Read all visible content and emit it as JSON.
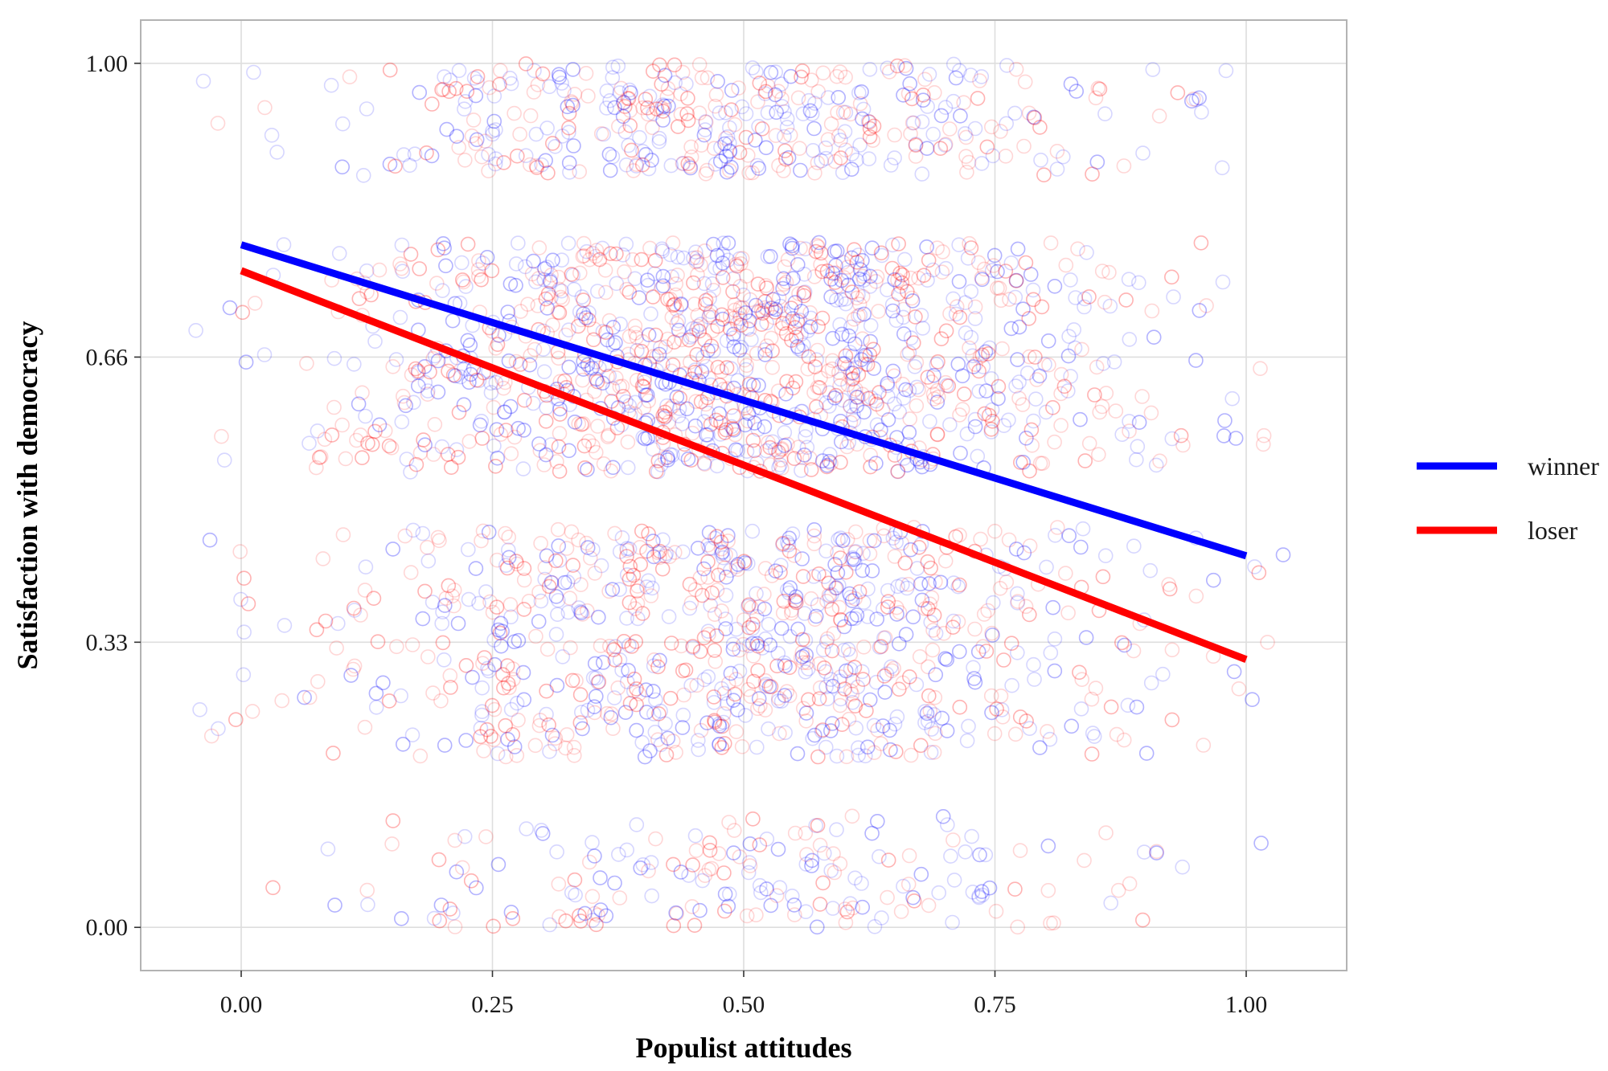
{
  "chart_data": {
    "type": "scatter",
    "title": "",
    "xlabel": "Populist attitudes",
    "ylabel": "Satisfaction with democracy",
    "xlim": [
      -0.1,
      1.1
    ],
    "ylim": [
      -0.05,
      1.05
    ],
    "x_ticks": [
      0.0,
      0.25,
      0.5,
      0.75,
      1.0
    ],
    "x_tick_labels": [
      "0.00",
      "0.25",
      "0.50",
      "0.75",
      "1.00"
    ],
    "y_ticks": [
      0.0,
      0.33,
      0.66,
      1.0
    ],
    "y_tick_labels": [
      "0.00",
      "0.33",
      "0.66",
      "1.00"
    ],
    "grid": true,
    "legend_position": "right",
    "jitter_levels": [
      0.0,
      0.33,
      0.66,
      1.0
    ],
    "series": [
      {
        "name": "winner",
        "color": "#0000ff",
        "marker": "open-circle",
        "fit_line": {
          "x": [
            0.0,
            1.0
          ],
          "y": [
            0.79,
            0.43
          ]
        }
      },
      {
        "name": "loser",
        "color": "#ff0000",
        "marker": "open-circle",
        "fit_line": {
          "x": [
            0.0,
            1.0
          ],
          "y": [
            0.76,
            0.31
          ]
        }
      }
    ]
  }
}
